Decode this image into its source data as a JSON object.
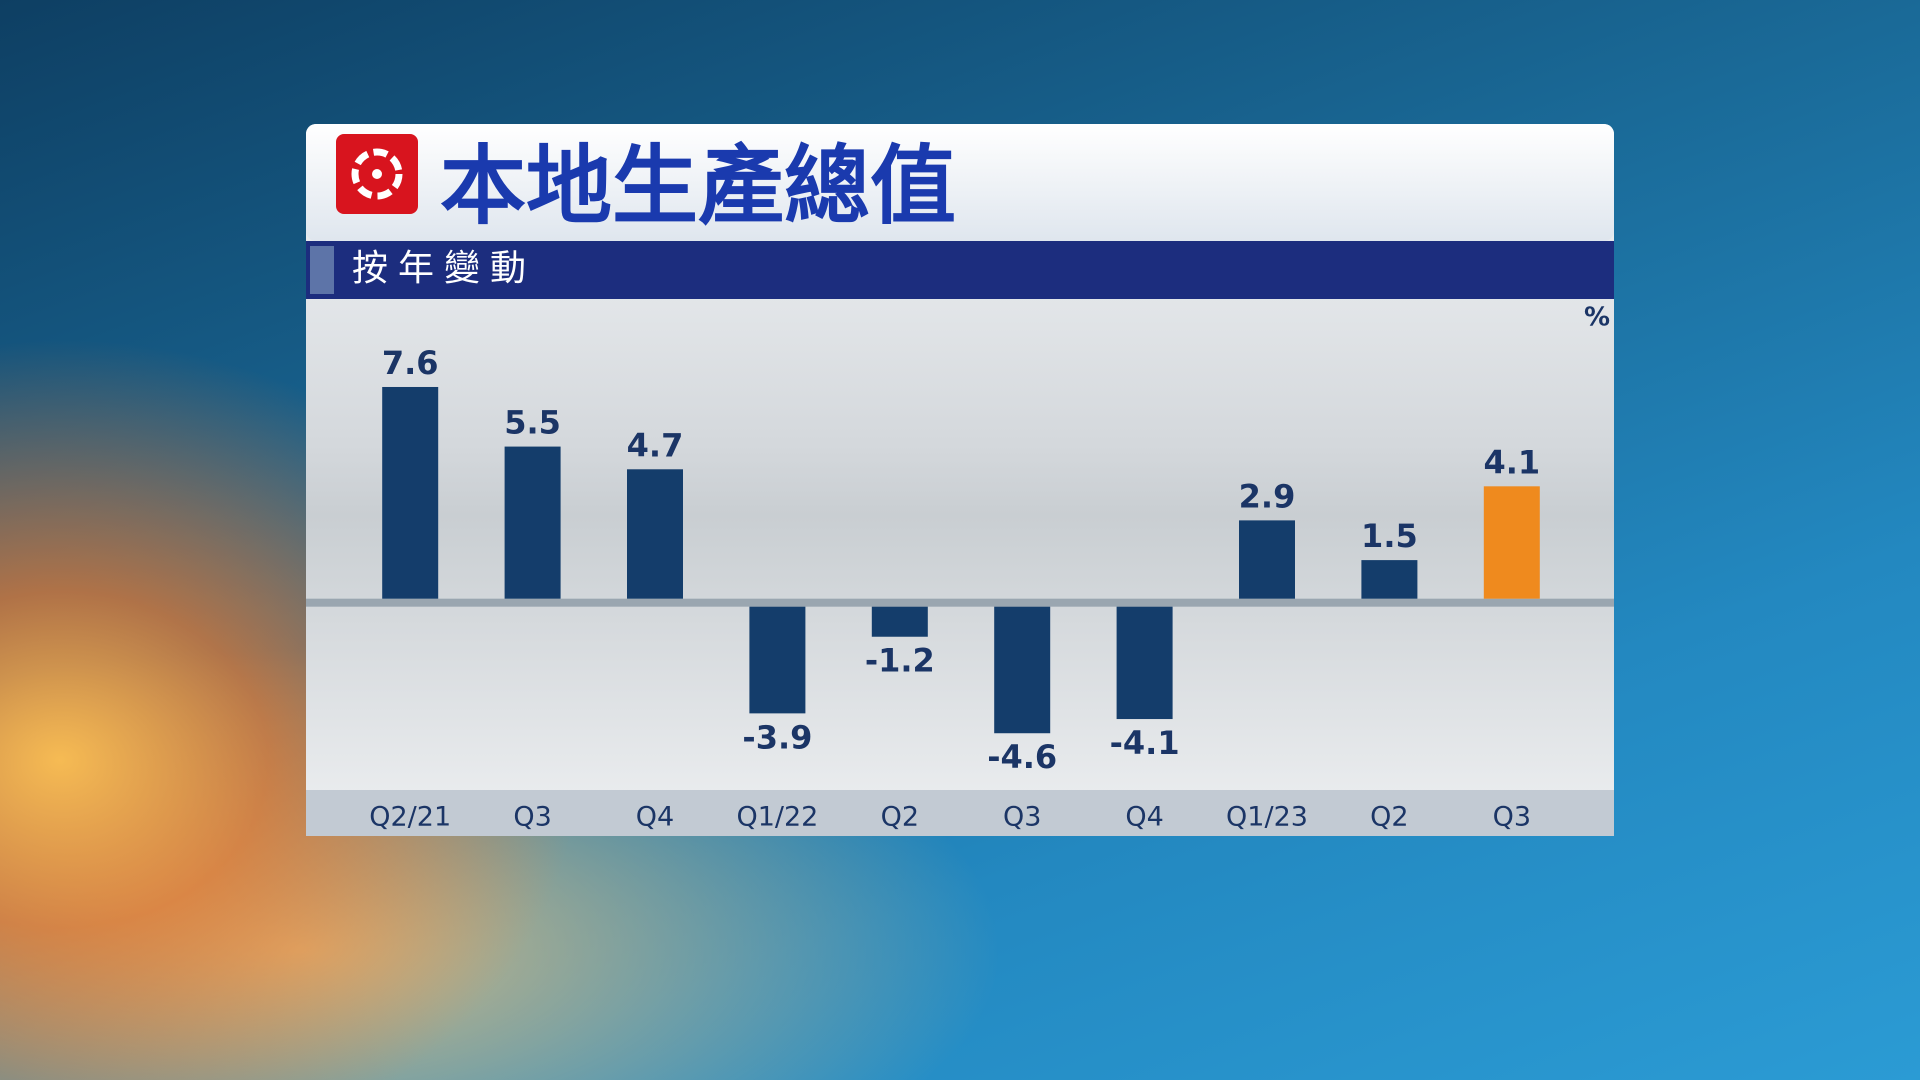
{
  "chart_data": {
    "type": "bar",
    "title": "本地生產總值",
    "subtitle": "按年變動",
    "y_label": "%",
    "categories": [
      "Q2/21",
      "Q3",
      "Q4",
      "Q1/22",
      "Q2",
      "Q3",
      "Q4",
      "Q1/23",
      "Q2",
      "Q3"
    ],
    "values": [
      7.6,
      5.5,
      4.7,
      -3.9,
      -1.2,
      -4.6,
      -4.1,
      2.9,
      1.5,
      4.1
    ],
    "colors": [
      "#143d6b",
      "#143d6b",
      "#143d6b",
      "#143d6b",
      "#143d6b",
      "#143d6b",
      "#143d6b",
      "#143d6b",
      "#143d6b",
      "#ef8a1e"
    ],
    "ylim": [
      -6.6,
      10.7
    ]
  }
}
